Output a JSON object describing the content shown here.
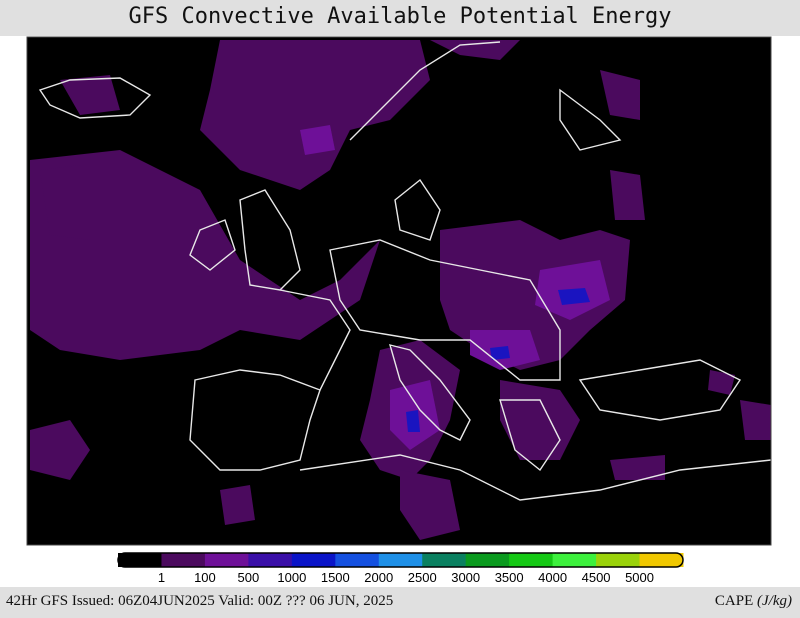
{
  "header": {
    "title": "GFS Convective Available Potential Energy"
  },
  "colorbar": {
    "colors": [
      "#000000",
      "#4b0a5e",
      "#6e1098",
      "#3a0fa8",
      "#0a14c8",
      "#1450e0",
      "#1e90e8",
      "#0a8060",
      "#0a9a1e",
      "#14c814",
      "#3cf03c",
      "#9ad20a",
      "#f0c800"
    ],
    "labels": [
      1,
      100,
      500,
      1000,
      1500,
      2000,
      2500,
      3000,
      3500,
      4000,
      4500,
      5000
    ]
  },
  "footer": {
    "info": "42Hr GFS Issued: 06Z04JUN2025 Valid: 00Z ??? 06 JUN, 2025",
    "variable": "CAPE",
    "units": "(J/kg)"
  }
}
